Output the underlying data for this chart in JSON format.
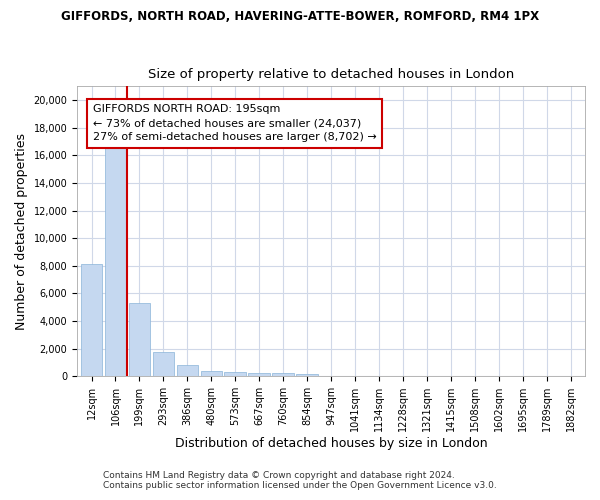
{
  "title": "GIFFORDS, NORTH ROAD, HAVERING-ATTE-BOWER, ROMFORD, RM4 1PX",
  "subtitle": "Size of property relative to detached houses in London",
  "xlabel": "Distribution of detached houses by size in London",
  "ylabel": "Number of detached properties",
  "bar_color": "#c5d8f0",
  "bar_edge_color": "#8ab4d8",
  "categories": [
    "12sqm",
    "106sqm",
    "199sqm",
    "293sqm",
    "386sqm",
    "480sqm",
    "573sqm",
    "667sqm",
    "760sqm",
    "854sqm",
    "947sqm",
    "1041sqm",
    "1134sqm",
    "1228sqm",
    "1321sqm",
    "1415sqm",
    "1508sqm",
    "1602sqm",
    "1695sqm",
    "1789sqm",
    "1882sqm"
  ],
  "values": [
    8100,
    16500,
    5300,
    1750,
    800,
    350,
    270,
    220,
    200,
    150,
    0,
    0,
    0,
    0,
    0,
    0,
    0,
    0,
    0,
    0,
    0
  ],
  "vline_color": "#cc0000",
  "annotation_line1": "GIFFORDS NORTH ROAD: 195sqm",
  "annotation_line2": "← 73% of detached houses are smaller (24,037)",
  "annotation_line3": "27% of semi-detached houses are larger (8,702) →",
  "annotation_box_color": "#cc0000",
  "ylim": [
    0,
    21000
  ],
  "yticks": [
    0,
    2000,
    4000,
    6000,
    8000,
    10000,
    12000,
    14000,
    16000,
    18000,
    20000
  ],
  "footnote1": "Contains HM Land Registry data © Crown copyright and database right 2024.",
  "footnote2": "Contains public sector information licensed under the Open Government Licence v3.0.",
  "bg_color": "#ffffff",
  "grid_color": "#d0d8e8",
  "title_fontsize": 8.5,
  "subtitle_fontsize": 9.5,
  "axis_label_fontsize": 9,
  "tick_fontsize": 7,
  "annotation_fontsize": 8,
  "footnote_fontsize": 6.5
}
